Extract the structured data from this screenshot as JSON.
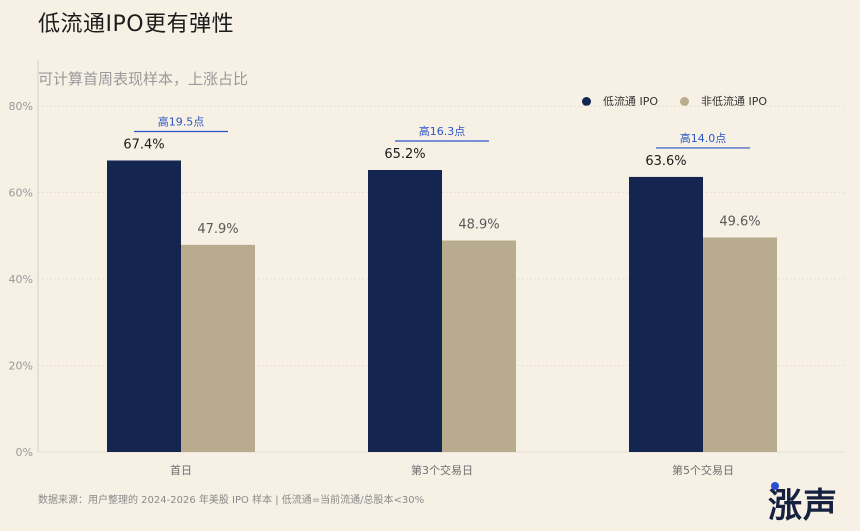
{
  "title": "低流通IPO更有弹性",
  "subtitle": "可计算首周表现样本，上涨占比",
  "source": "数据来源：用户整理的 2024-2026 年美股 IPO 样本 | 低流通=当前流通/总股本<30%",
  "logo": "涨声",
  "colors": {
    "low_float": "#14254f",
    "non_low_float": "#b9ab8e",
    "annotation": "#2a55c7",
    "grid": "#e6dfd2",
    "axis_text": "#9a9a9a",
    "background": "#f6f0e5"
  },
  "chart_data": {
    "type": "bar",
    "categories": [
      "首日",
      "第3个交易日",
      "第5个交易日"
    ],
    "series": [
      {
        "name": "低流通 IPO",
        "values": [
          67.4,
          65.2,
          63.6
        ],
        "labels": [
          "67.4%",
          "65.2%",
          "63.6%"
        ]
      },
      {
        "name": "非低流通 IPO",
        "values": [
          47.9,
          48.9,
          49.6
        ],
        "labels": [
          "47.9%",
          "48.9%",
          "49.6%"
        ]
      }
    ],
    "annotations": [
      "高19.5点",
      "高16.3点",
      "高14.0点"
    ],
    "yticks": [
      "0%",
      "20%",
      "40%",
      "60%",
      "80%"
    ],
    "ylim": [
      0,
      80
    ],
    "grid": true,
    "legend_position": "top-right"
  }
}
